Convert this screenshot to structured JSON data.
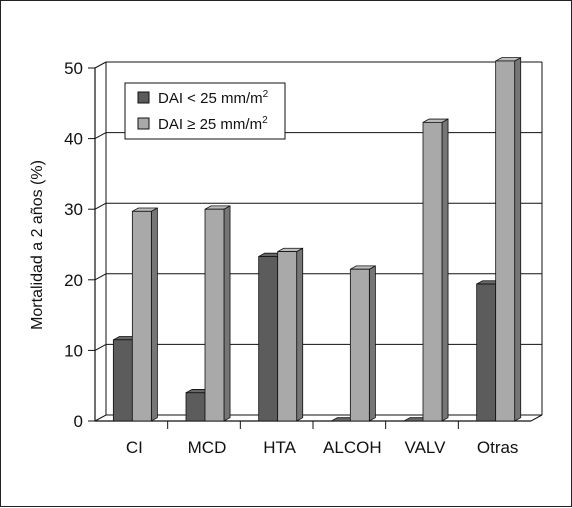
{
  "chart_data": {
    "type": "bar",
    "title": "",
    "xlabel": "",
    "ylabel": "Mortalidad a 2 años (%)",
    "ylim": [
      0,
      50
    ],
    "yticks": [
      0,
      10,
      20,
      30,
      40,
      50
    ],
    "grid": true,
    "legend_position": "top-left",
    "categories": [
      "CI",
      "MCD",
      "HTA",
      "ALCOH",
      "VALV",
      "Otras"
    ],
    "series": [
      {
        "name": "DAI < 25 mm/m²",
        "legend_main": "DAI < 25 mm/m",
        "legend_sup": "2",
        "color": "#5c5c5c",
        "values": [
          11.5,
          4,
          23.3,
          0,
          0,
          19.4
        ]
      },
      {
        "name": "DAI ≥ 25 mm/m²",
        "legend_main": "DAI ≥ 25 mm/m",
        "legend_sup": "2",
        "color": "#a9a9a9",
        "values": [
          29.7,
          30,
          24,
          21.5,
          42.3,
          51
        ]
      }
    ]
  }
}
